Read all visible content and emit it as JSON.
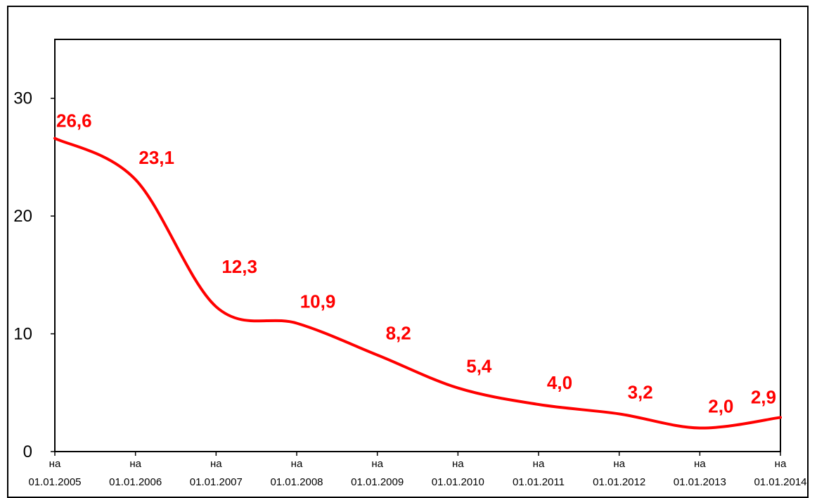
{
  "chart_data": {
    "type": "line",
    "title": "",
    "xlabel": "",
    "ylabel": "",
    "categories": [
      [
        "на",
        "01.01.2005"
      ],
      [
        "на",
        "01.01.2006"
      ],
      [
        "на",
        "01.01.2007"
      ],
      [
        "на",
        "01.01.2008"
      ],
      [
        "на",
        "01.01.2009"
      ],
      [
        "на",
        "01.01.2010"
      ],
      [
        "на",
        "01.01.2011"
      ],
      [
        "на",
        "01.01.2012"
      ],
      [
        "на",
        "01.01.2013"
      ],
      [
        "на",
        "01.01.2014"
      ]
    ],
    "values": [
      26.6,
      23.1,
      12.3,
      10.9,
      8.2,
      5.4,
      4.0,
      3.2,
      2.0,
      2.9
    ],
    "value_labels": [
      "26,6",
      "23,1",
      "12,3",
      "10,9",
      "8,2",
      "5,4",
      "4,0",
      "3,2",
      "2,0",
      "2,9"
    ],
    "ylim": [
      0,
      35
    ],
    "yticks": [
      0,
      10,
      20,
      30
    ],
    "grid": false,
    "legend": "none",
    "series_color": "#ff0000",
    "smooth": true
  }
}
